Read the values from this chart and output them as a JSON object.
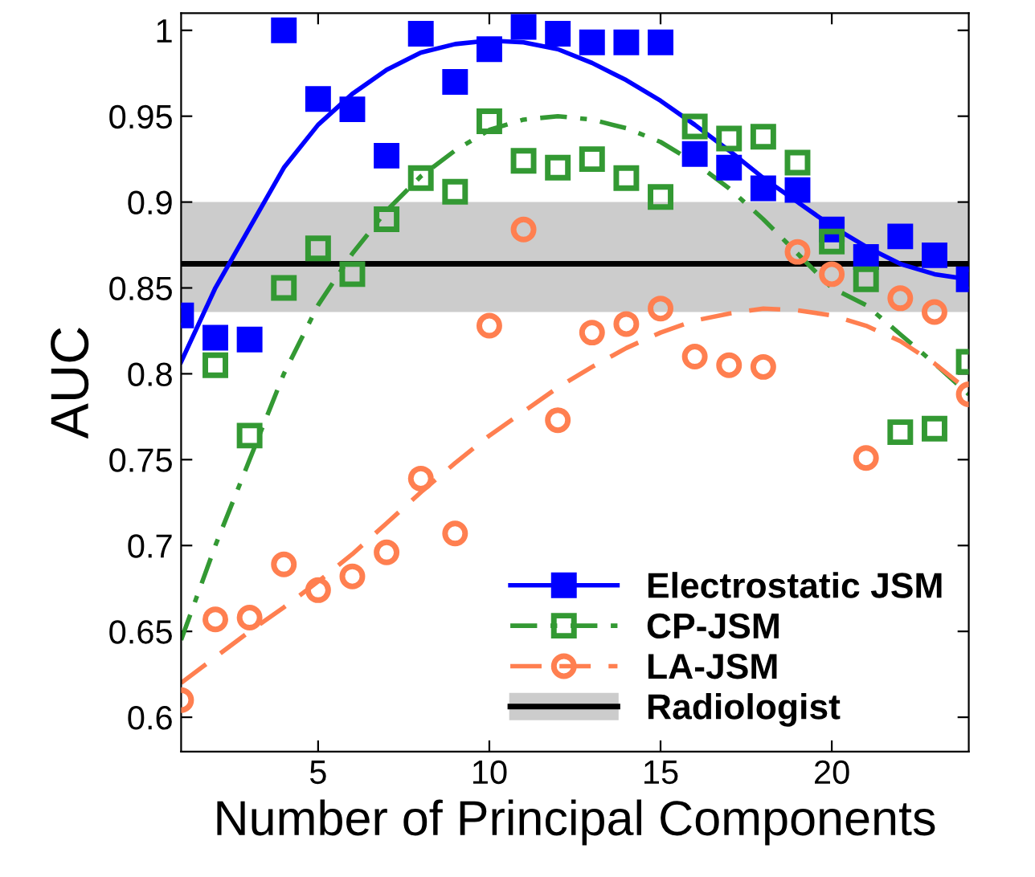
{
  "chart_data": {
    "type": "scatter",
    "xlabel": "Number of Principal Components",
    "ylabel": "AUC",
    "xlim": [
      1,
      24
    ],
    "xticks": [
      5,
      10,
      15,
      20
    ],
    "ylim": [
      0.58,
      1.01
    ],
    "yticks": [
      0.6,
      0.65,
      0.7,
      0.75,
      0.8,
      0.85,
      0.9,
      0.95,
      1
    ],
    "grid": false,
    "legend": "bottom right",
    "x": [
      1,
      2,
      3,
      4,
      5,
      6,
      7,
      8,
      9,
      10,
      11,
      12,
      13,
      14,
      15,
      16,
      17,
      18,
      19,
      20,
      21,
      22,
      23,
      24
    ],
    "series": [
      {
        "name": "Electrostatic JSM",
        "color": "#0000ff",
        "marker": "square",
        "values": [
          0.834,
          0.821,
          0.82,
          1.0,
          0.96,
          0.954,
          0.927,
          0.998,
          0.97,
          0.989,
          1.002,
          0.998,
          0.993,
          0.993,
          0.993,
          0.928,
          0.92,
          0.908,
          0.907,
          0.884,
          0.868,
          0.88,
          0.869,
          0.855
        ]
      },
      {
        "name": "CP-JSM",
        "color": "#339933",
        "marker": "square",
        "values": [
          null,
          0.805,
          0.764,
          0.85,
          0.873,
          0.858,
          0.89,
          0.914,
          0.906,
          0.947,
          0.924,
          0.92,
          0.925,
          0.914,
          0.903,
          0.944,
          0.937,
          0.938,
          0.923,
          0.877,
          0.855,
          0.766,
          0.768,
          0.807
        ]
      },
      {
        "name": "LA-JSM",
        "color": "#ff7f50",
        "marker": "circle",
        "values": [
          0.61,
          0.657,
          0.658,
          0.689,
          0.674,
          0.682,
          0.696,
          0.739,
          0.707,
          0.828,
          0.884,
          0.773,
          0.824,
          0.829,
          0.838,
          0.81,
          0.805,
          0.804,
          0.871,
          0.858,
          0.751,
          0.844,
          0.836,
          0.788
        ]
      },
      {
        "type": "line",
        "color": "#0000ff",
        "line_style": "solid",
        "marker": "none",
        "values": [
          0.807,
          0.85,
          0.885,
          0.92,
          0.945,
          0.963,
          0.977,
          0.987,
          0.992,
          0.994,
          0.993,
          0.989,
          0.981,
          0.971,
          0.959,
          0.945,
          0.93,
          0.914,
          0.9,
          0.886,
          0.874,
          0.864,
          0.858,
          0.855
        ]
      },
      {
        "type": "line",
        "color": "#339933",
        "line_style": "dashdot",
        "marker": "none",
        "values": [
          0.645,
          0.7,
          0.75,
          0.8,
          0.84,
          0.87,
          0.895,
          0.915,
          0.93,
          0.942,
          0.948,
          0.95,
          0.948,
          0.943,
          0.935,
          0.923,
          0.908,
          0.89,
          0.87,
          0.85,
          0.84,
          0.823,
          0.806,
          0.788
        ]
      },
      {
        "type": "line",
        "color": "#ff7f50",
        "line_style": "dashed",
        "marker": "none",
        "values": [
          0.62,
          0.635,
          0.65,
          0.664,
          0.679,
          0.695,
          0.713,
          0.731,
          0.748,
          0.764,
          0.778,
          0.792,
          0.804,
          0.815,
          0.824,
          0.831,
          0.835,
          0.838,
          0.837,
          0.834,
          0.828,
          0.819,
          0.806,
          0.79
        ]
      }
    ],
    "ref_lines": [
      {
        "axis": "y",
        "value": 0.864,
        "label": "Radiologist",
        "color": "#000000"
      }
    ],
    "bands": [
      {
        "axis": "y",
        "from": 0.836,
        "to": 0.9,
        "color": "#cccccc"
      }
    ]
  }
}
